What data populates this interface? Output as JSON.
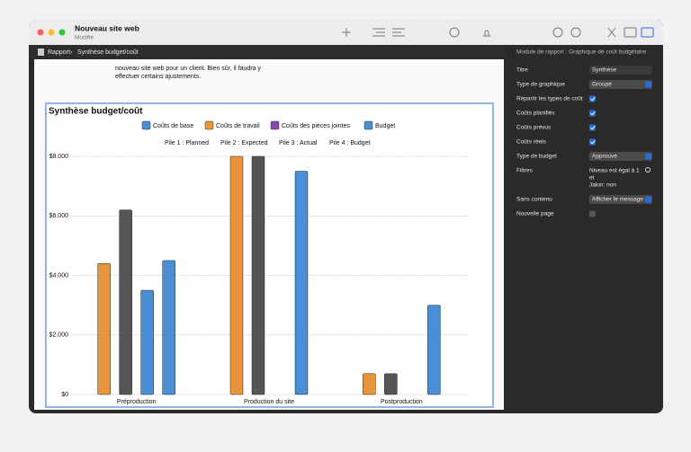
{
  "window": {
    "title": "Nouveau site web",
    "subtitle": "Modifié"
  },
  "breadcrumb": [
    "Rapport",
    "Synthèse budget/coût"
  ],
  "document": {
    "lines": [
      "nouveau site web pour un client. Bien sûr, il faudra y",
      "effectuer certains ajustements."
    ]
  },
  "chart_data": {
    "type": "bar",
    "title": "Synthèse budget/coût",
    "legend": [
      {
        "name": "Coûts de base",
        "color": "#4a8fd6"
      },
      {
        "name": "Coûts de travail",
        "color": "#e8943a"
      },
      {
        "name": "Coûts des pièces jointes",
        "color": "#8e44ad"
      },
      {
        "name": "Budget",
        "color": "#4a8fd6"
      }
    ],
    "stacks": [
      "Pile 1 : Planned",
      "Pile 2 : Expected",
      "Pile 3 : Actual",
      "Pile 4 : Budget"
    ],
    "categories": [
      "Préproduction",
      "Production du site",
      "Postproduction"
    ],
    "series": [
      {
        "color": "#e8943a",
        "values": [
          4400,
          8000,
          700
        ]
      },
      {
        "color": "#555555",
        "values": [
          6200,
          8000,
          700
        ]
      },
      {
        "color": "#4a8fd6",
        "values": [
          3500,
          null,
          null
        ]
      },
      {
        "color": "#4a8fd6",
        "values": [
          4500,
          7500,
          3000
        ]
      }
    ],
    "ylim": [
      0,
      8000
    ],
    "yticks": [
      {
        "value": 0,
        "label": "$0"
      },
      {
        "value": 2000,
        "label": "$2.000"
      },
      {
        "value": 4000,
        "label": "$4.000"
      },
      {
        "value": 6000,
        "label": "$6.000"
      },
      {
        "value": 8000,
        "label": "$8.000"
      }
    ],
    "grid": true
  },
  "inspector": {
    "header": "Module de rapport : Graphique de coût budgétaire",
    "fields": [
      {
        "label": "Titre",
        "value": "Synthèse",
        "kind": "text"
      },
      {
        "label": "Type de graphique",
        "value": "Groupé",
        "kind": "select"
      },
      {
        "label": "Répartir les types de coût",
        "checked": true,
        "kind": "check"
      },
      {
        "label": "Coûts planifiés",
        "checked": true,
        "kind": "check"
      },
      {
        "label": "Coûts prévus",
        "checked": true,
        "kind": "check"
      },
      {
        "label": "Coûts réels",
        "checked": true,
        "kind": "check"
      },
      {
        "label": "Type de budget",
        "value": "Approuvé",
        "kind": "select"
      },
      {
        "label": "Filtres",
        "lines": [
          "Niveau est égal à 1",
          "et",
          "Jalon: non"
        ],
        "kind": "lines"
      },
      {
        "label": "Sans contenu",
        "value": "Afficher le message",
        "kind": "select"
      },
      {
        "label": "Nouvelle page",
        "checked": false,
        "kind": "check"
      }
    ]
  }
}
